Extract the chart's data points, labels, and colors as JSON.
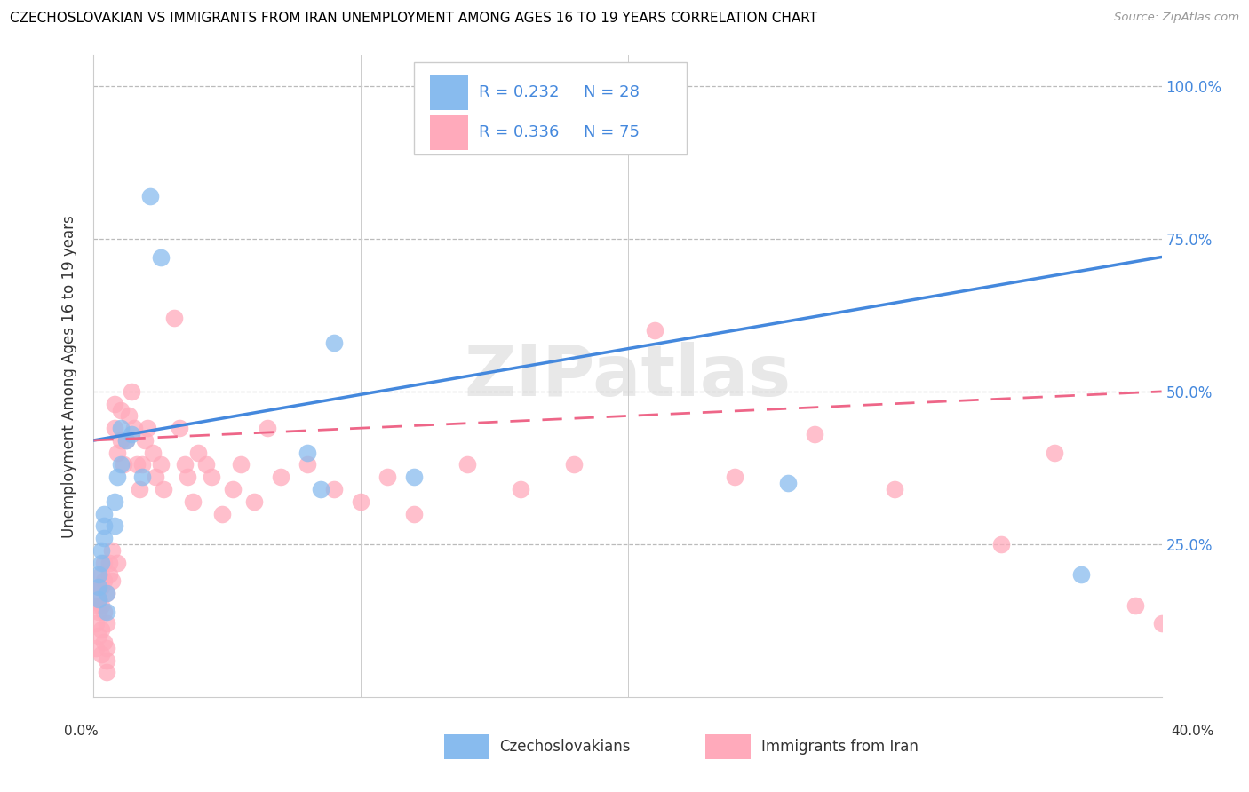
{
  "title": "CZECHOSLOVAKIAN VS IMMIGRANTS FROM IRAN UNEMPLOYMENT AMONG AGES 16 TO 19 YEARS CORRELATION CHART",
  "source": "Source: ZipAtlas.com",
  "ylabel": "Unemployment Among Ages 16 to 19 years",
  "watermark": "ZIPatlas",
  "legend_r1": "R = 0.232",
  "legend_n1": "N = 28",
  "legend_r2": "R = 0.336",
  "legend_n2": "N = 75",
  "label1": "Czechoslovakians",
  "label2": "Immigrants from Iran",
  "blue_color": "#88BBEE",
  "pink_color": "#FFAABB",
  "blue_line_color": "#4488DD",
  "pink_line_color": "#EE6688",
  "blue_line": [
    0.0,
    0.4,
    0.42,
    0.72
  ],
  "pink_line": [
    0.0,
    0.4,
    0.42,
    0.5
  ],
  "blue_x": [
    0.002,
    0.002,
    0.002,
    0.003,
    0.003,
    0.004,
    0.004,
    0.004,
    0.005,
    0.005,
    0.008,
    0.008,
    0.009,
    0.01,
    0.01,
    0.012,
    0.014,
    0.018,
    0.021,
    0.025,
    0.08,
    0.085,
    0.09,
    0.12,
    0.145,
    0.15,
    0.26,
    0.37
  ],
  "blue_y": [
    0.2,
    0.18,
    0.16,
    0.22,
    0.24,
    0.26,
    0.28,
    0.3,
    0.14,
    0.17,
    0.28,
    0.32,
    0.36,
    0.38,
    0.44,
    0.42,
    0.43,
    0.36,
    0.82,
    0.72,
    0.4,
    0.34,
    0.58,
    0.36,
    0.99,
    0.99,
    0.35,
    0.2
  ],
  "pink_x": [
    0.001,
    0.001,
    0.001,
    0.002,
    0.002,
    0.002,
    0.002,
    0.003,
    0.003,
    0.003,
    0.003,
    0.003,
    0.004,
    0.004,
    0.004,
    0.004,
    0.005,
    0.005,
    0.005,
    0.005,
    0.005,
    0.006,
    0.006,
    0.007,
    0.007,
    0.008,
    0.008,
    0.009,
    0.009,
    0.01,
    0.01,
    0.011,
    0.012,
    0.013,
    0.014,
    0.015,
    0.016,
    0.017,
    0.018,
    0.019,
    0.02,
    0.022,
    0.023,
    0.025,
    0.026,
    0.03,
    0.032,
    0.034,
    0.035,
    0.037,
    0.039,
    0.042,
    0.044,
    0.048,
    0.052,
    0.055,
    0.06,
    0.065,
    0.07,
    0.08,
    0.09,
    0.1,
    0.11,
    0.12,
    0.14,
    0.16,
    0.18,
    0.21,
    0.24,
    0.27,
    0.3,
    0.34,
    0.36,
    0.39,
    0.4
  ],
  "pink_y": [
    0.15,
    0.12,
    0.08,
    0.18,
    0.16,
    0.14,
    0.1,
    0.2,
    0.18,
    0.15,
    0.11,
    0.07,
    0.22,
    0.19,
    0.14,
    0.09,
    0.04,
    0.06,
    0.08,
    0.12,
    0.17,
    0.2,
    0.22,
    0.24,
    0.19,
    0.48,
    0.44,
    0.4,
    0.22,
    0.47,
    0.42,
    0.38,
    0.42,
    0.46,
    0.5,
    0.44,
    0.38,
    0.34,
    0.38,
    0.42,
    0.44,
    0.4,
    0.36,
    0.38,
    0.34,
    0.62,
    0.44,
    0.38,
    0.36,
    0.32,
    0.4,
    0.38,
    0.36,
    0.3,
    0.34,
    0.38,
    0.32,
    0.44,
    0.36,
    0.38,
    0.34,
    0.32,
    0.36,
    0.3,
    0.38,
    0.34,
    0.38,
    0.6,
    0.36,
    0.43,
    0.34,
    0.25,
    0.4,
    0.15,
    0.12
  ]
}
